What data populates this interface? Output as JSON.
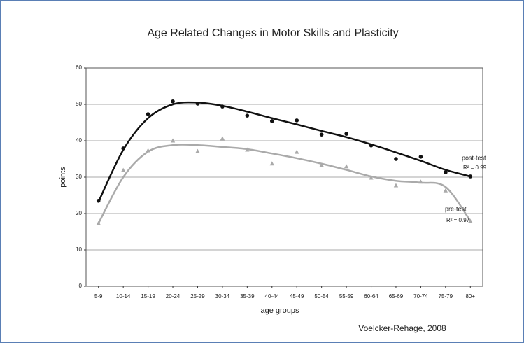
{
  "chart_data": {
    "type": "line",
    "title": "Age Related Changes in Motor Skills and Plasticity",
    "xlabel": "age groups",
    "ylabel": "points",
    "source": "Voelcker-Rehage, 2008",
    "categories": [
      "5-9",
      "10-14",
      "15-19",
      "20-24",
      "25-29",
      "30-34",
      "35-39",
      "40-44",
      "45-49",
      "50-54",
      "55-59",
      "60-64",
      "65-69",
      "70-74",
      "75-79",
      "80+"
    ],
    "ylim": [
      0,
      60
    ],
    "yticks": [
      0,
      10,
      20,
      30,
      40,
      50,
      60
    ],
    "grid": true,
    "series": [
      {
        "name": "post-test",
        "r2": "R² = 0.99",
        "color": "#111111",
        "marker": "circle",
        "values": [
          23.5,
          37.9,
          47.3,
          50.8,
          50.2,
          49.4,
          46.9,
          45.4,
          45.6,
          41.7,
          41.9,
          38.7,
          35.0,
          35.6,
          31.3,
          30.2
        ],
        "trend": [
          23.2,
          37.5,
          46.2,
          50.0,
          50.5,
          49.6,
          48.0,
          46.2,
          44.5,
          42.7,
          41.0,
          39.0,
          36.8,
          34.5,
          32.0,
          30.2
        ]
      },
      {
        "name": "pre-test",
        "r2": "R² = 0.97",
        "color": "#aaaaaa",
        "marker": "triangle",
        "values": [
          17.3,
          31.9,
          37.3,
          40.0,
          37.1,
          40.6,
          37.5,
          33.7,
          36.9,
          33.3,
          32.9,
          29.8,
          27.7,
          28.7,
          26.3,
          17.9
        ],
        "trend": [
          17.3,
          30.0,
          37.0,
          38.8,
          38.8,
          38.3,
          37.7,
          36.5,
          35.2,
          33.7,
          32.0,
          30.2,
          29.0,
          28.5,
          27.3,
          18.0
        ]
      }
    ]
  }
}
